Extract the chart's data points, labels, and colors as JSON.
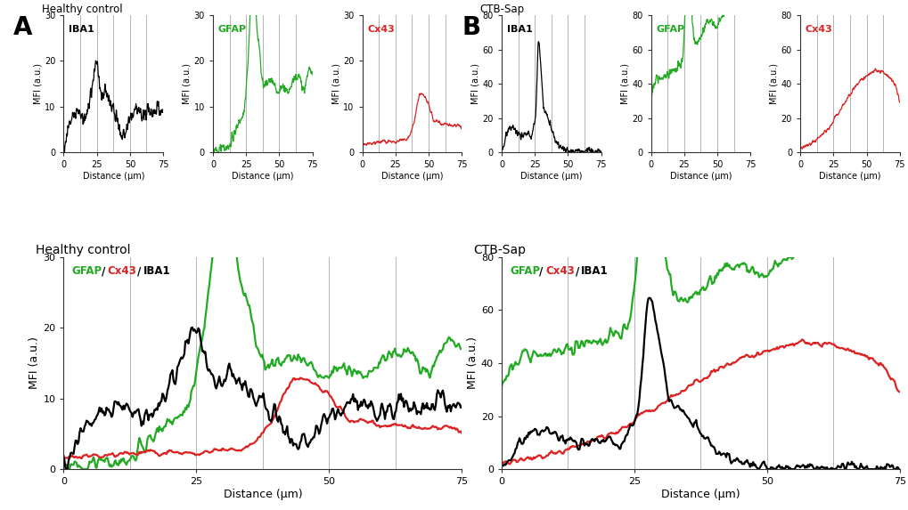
{
  "title_A": "Healthy control",
  "title_B": "CTB-Sap",
  "label_IBA1": "IBA1",
  "label_GFAP": "GFAP",
  "label_Cx43": "Cx43",
  "color_IBA1": "#000000",
  "color_GFAP": "#22aa22",
  "color_Cx43": "#dd2222",
  "xlabel": "Distance (μm)",
  "ylabel": "MFI (a.u.)",
  "xlim": [
    0,
    75
  ],
  "ylim_A": [
    0,
    30
  ],
  "ylim_B": [
    0,
    80
  ],
  "yticks_A": [
    0,
    10,
    20,
    30
  ],
  "yticks_B": [
    0,
    20,
    40,
    60,
    80
  ],
  "xticks": [
    0,
    25,
    50,
    75
  ],
  "vlines": [
    12.5,
    25.0,
    37.5,
    50.0,
    62.5
  ],
  "panel_A_label": "A",
  "panel_B_label": "B",
  "lw_small": 0.9,
  "lw_large": 1.6,
  "vline_color": "#aaaaaa",
  "vline_lw": 0.6
}
